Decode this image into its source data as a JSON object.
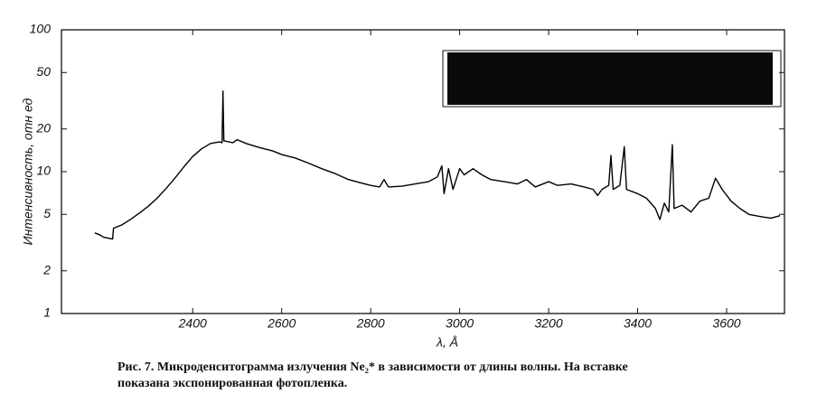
{
  "chart_data": {
    "type": "line",
    "yscale": "log",
    "grid": false,
    "xlabel": "λ, Å",
    "ylabel": "Интенсивность, отн ед",
    "caption": "Рис. 7. Микроденситограмма излучения Ne₂* в зависимости от длины волны. На вставке показана экспонированная фотопленка.",
    "xlim": [
      2105,
      3730
    ],
    "xticks": [
      2400,
      2600,
      2800,
      3000,
      3200,
      3400,
      3600
    ],
    "ylim": [
      1,
      100
    ],
    "yticks": [
      100,
      50,
      20,
      10,
      5,
      2,
      1
    ],
    "x": [
      2180,
      2190,
      2200,
      2210,
      2220,
      2222,
      2240,
      2260,
      2280,
      2300,
      2320,
      2340,
      2360,
      2380,
      2400,
      2420,
      2440,
      2460,
      2466,
      2468,
      2470,
      2490,
      2500,
      2520,
      2550,
      2580,
      2600,
      2630,
      2660,
      2690,
      2720,
      2750,
      2780,
      2800,
      2820,
      2830,
      2840,
      2870,
      2900,
      2930,
      2950,
      2960,
      2965,
      2975,
      2985,
      3000,
      3010,
      3030,
      3050,
      3070,
      3100,
      3130,
      3150,
      3170,
      3200,
      3220,
      3250,
      3280,
      3300,
      3310,
      3320,
      3335,
      3340,
      3345,
      3360,
      3370,
      3375,
      3400,
      3420,
      3440,
      3450,
      3460,
      3470,
      3478,
      3482,
      3500,
      3520,
      3540,
      3560,
      3575,
      3590,
      3610,
      3630,
      3650,
      3680,
      3700,
      3720
    ],
    "series": [
      {
        "color": "#000000",
        "values": [
          3.7,
          3.6,
          3.45,
          3.4,
          3.35,
          4.0,
          4.2,
          4.6,
          5.1,
          5.7,
          6.5,
          7.6,
          9.0,
          10.8,
          12.8,
          14.5,
          15.8,
          16.2,
          16,
          37,
          16.5,
          16,
          16.8,
          15.8,
          14.8,
          14,
          13.2,
          12.5,
          11.5,
          10.5,
          9.7,
          8.8,
          8.3,
          8.0,
          7.8,
          8.8,
          7.8,
          7.9,
          8.2,
          8.5,
          9.2,
          11,
          7,
          10.5,
          7.5,
          10.5,
          9.5,
          10.5,
          9.5,
          8.8,
          8.5,
          8.2,
          8.8,
          7.8,
          8.5,
          8,
          8.2,
          7.8,
          7.5,
          6.8,
          7.5,
          8,
          13,
          7.5,
          8,
          15,
          7.5,
          7,
          6.5,
          5.5,
          4.6,
          6,
          5.2,
          15.5,
          5.5,
          5.8,
          5.2,
          6.2,
          6.5,
          9,
          7.5,
          6.2,
          5.5,
          5.0,
          4.8,
          4.7,
          4.9
        ]
      }
    ]
  }
}
